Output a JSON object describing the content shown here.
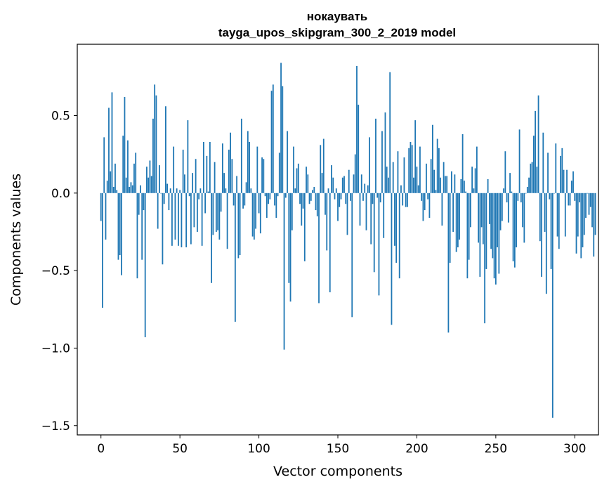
{
  "chart_data": {
    "type": "bar",
    "title": "нокаувать",
    "subtitle": "tayga_upos_skipgram_300_2_2019 model",
    "xlabel": "Vector components",
    "ylabel": "Components values",
    "xlim": [
      -15,
      315
    ],
    "ylim": [
      -1.56,
      0.96
    ],
    "xticks": [
      0,
      50,
      100,
      150,
      200,
      250,
      300
    ],
    "yticks": [
      0.5,
      0.0,
      -0.5,
      -1.0,
      -1.5
    ],
    "xtick_labels": [
      "0",
      "50",
      "100",
      "150",
      "200",
      "250",
      "300"
    ],
    "ytick_labels": [
      "0.5",
      "0.0",
      "−0.5",
      "−1.0",
      "−1.5"
    ],
    "grid": false,
    "bar_color": "#1f77b4",
    "series": [
      {
        "values": [
          -0.18,
          -0.74,
          0.36,
          -0.3,
          0.08,
          0.55,
          0.14,
          0.65,
          0.04,
          0.19,
          0.02,
          -0.43,
          -0.4,
          -0.53,
          0.37,
          0.62,
          0.1,
          0.34,
          0.04,
          0.07,
          0.05,
          0.19,
          0.26,
          -0.55,
          -0.14,
          0.05,
          -0.43,
          -0.11,
          -0.93,
          0.17,
          0.1,
          0.21,
          0.11,
          0.48,
          0.7,
          0.63,
          -0.23,
          0.18,
          0.0,
          -0.46,
          -0.07,
          0.56,
          0.06,
          -0.11,
          0.03,
          -0.34,
          0.3,
          -0.3,
          0.03,
          -0.34,
          0.02,
          -0.35,
          0.28,
          0.12,
          -0.35,
          0.47,
          -0.02,
          -0.33,
          0.13,
          -0.22,
          0.22,
          -0.25,
          -0.04,
          0.03,
          -0.34,
          0.33,
          -0.13,
          0.24,
          0.01,
          0.33,
          -0.58,
          -0.27,
          0.2,
          -0.25,
          -0.24,
          -0.3,
          -0.12,
          0.32,
          0.13,
          0.03,
          -0.36,
          0.28,
          0.39,
          0.22,
          -0.08,
          -0.83,
          0.11,
          -0.42,
          -0.4,
          0.48,
          -0.1,
          -0.08,
          0.07,
          0.4,
          0.33,
          0.03,
          -0.28,
          -0.3,
          -0.23,
          0.3,
          -0.13,
          -0.26,
          0.23,
          0.22,
          -0.02,
          -0.16,
          -0.07,
          -0.04,
          0.66,
          0.7,
          -0.08,
          -0.16,
          -0.02,
          0.26,
          0.84,
          0.69,
          -1.01,
          -0.03,
          0.4,
          -0.58,
          -0.7,
          -0.24,
          0.3,
          0.03,
          0.16,
          0.19,
          -0.07,
          -0.21,
          -0.1,
          -0.44,
          0.17,
          0.12,
          -0.07,
          -0.05,
          0.02,
          0.04,
          -0.11,
          -0.15,
          -0.71,
          0.31,
          0.13,
          0.35,
          -0.14,
          -0.37,
          0.03,
          -0.64,
          0.18,
          0.1,
          -0.04,
          0.03,
          -0.18,
          -0.09,
          -0.04,
          0.1,
          0.11,
          -0.07,
          -0.27,
          0.15,
          -0.05,
          -0.8,
          0.12,
          0.25,
          0.82,
          0.57,
          -0.21,
          0.12,
          -0.05,
          0.06,
          -0.24,
          0.05,
          0.36,
          -0.33,
          -0.07,
          -0.51,
          0.48,
          -0.03,
          -0.66,
          -0.06,
          0.4,
          -0.29,
          0.52,
          0.17,
          0.1,
          0.78,
          -0.85,
          0.2,
          -0.34,
          -0.45,
          0.27,
          -0.55,
          0.05,
          -0.08,
          0.23,
          -0.09,
          -0.09,
          0.29,
          0.33,
          0.31,
          0.1,
          0.47,
          0.17,
          0.05,
          0.3,
          -0.05,
          -0.18,
          -0.11,
          0.19,
          -0.04,
          -0.16,
          0.22,
          0.44,
          0.15,
          0.02,
          0.35,
          0.29,
          0.1,
          -0.21,
          0.2,
          0.11,
          0.11,
          -0.9,
          -0.45,
          0.14,
          -0.25,
          0.12,
          -0.38,
          -0.35,
          -0.3,
          0.09,
          0.38,
          0.08,
          0.01,
          -0.55,
          -0.43,
          -0.22,
          0.17,
          0.03,
          0.16,
          0.3,
          -0.32,
          -0.54,
          -0.22,
          -0.33,
          -0.84,
          -0.49,
          0.09,
          -0.2,
          -0.36,
          -0.42,
          -0.55,
          -0.59,
          -0.35,
          -0.52,
          -0.24,
          -0.18,
          0.03,
          0.27,
          -0.06,
          -0.19,
          0.13,
          0.01,
          -0.44,
          -0.48,
          -0.35,
          -0.05,
          0.41,
          -0.06,
          -0.22,
          -0.32,
          0.0,
          0.04,
          0.1,
          0.19,
          0.2,
          0.37,
          0.53,
          0.17,
          0.63,
          -0.31,
          -0.54,
          0.39,
          -0.25,
          -0.65,
          0.26,
          -0.04,
          -0.49,
          -1.45,
          0.0,
          0.32,
          -0.28,
          -0.36,
          0.24,
          0.29,
          0.15,
          -0.28,
          0.15,
          -0.08,
          -0.08,
          0.08,
          0.14,
          -0.05,
          -0.39,
          -0.28,
          -0.06,
          -0.42,
          -0.35,
          -0.27,
          -0.16,
          0.0,
          -0.14,
          -0.09,
          -0.22,
          -0.41,
          -0.27
        ]
      }
    ]
  }
}
